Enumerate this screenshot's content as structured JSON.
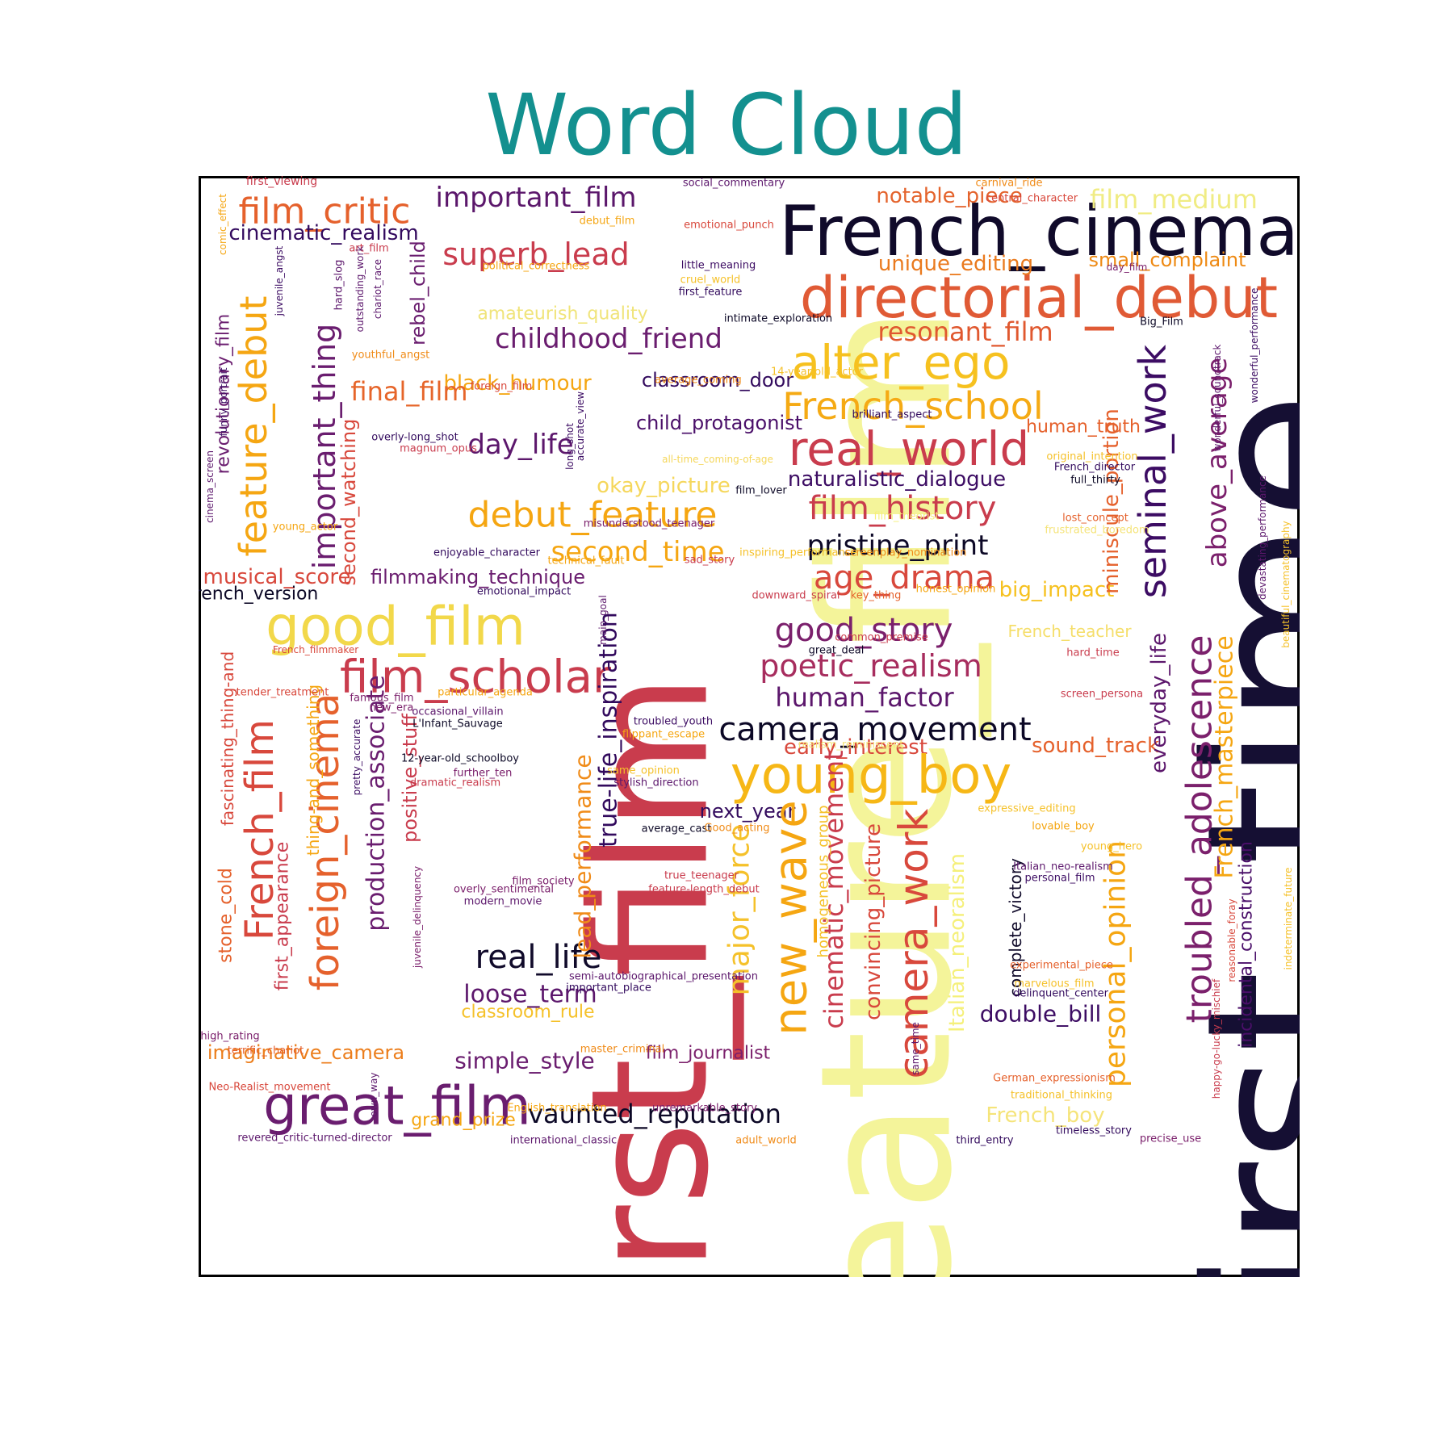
{
  "chart_data": {
    "type": "wordcloud",
    "title": "Word Cloud",
    "colormap": "inferno",
    "background": "#ffffff",
    "palette": {
      "title": "#13908f",
      "frame": "#000000"
    },
    "words": [
      {
        "text": "first_film",
        "c": "#c93c4d"
      },
      {
        "text": "feature_film",
        "c": "#f4f49a"
      },
      {
        "text": "first_time",
        "c": "#150f33"
      },
      {
        "text": "French_cinema",
        "c": "#100a2a"
      },
      {
        "text": "directorial_debut",
        "c": "#e05a35"
      },
      {
        "text": "film_critic",
        "c": "#e5612c"
      },
      {
        "text": "important_film",
        "c": "#5b176b"
      },
      {
        "text": "notable_piece",
        "c": "#e4632c"
      },
      {
        "text": "film_medium",
        "c": "#f0ec84"
      },
      {
        "text": "cinematic_realism",
        "c": "#330a5e"
      },
      {
        "text": "superb_lead",
        "c": "#c93c4d"
      },
      {
        "text": "unique_editing",
        "c": "#ea7a1e"
      },
      {
        "text": "small_complaint",
        "c": "#ee8a14"
      },
      {
        "text": "amateurish_quality",
        "c": "#f0e47a"
      },
      {
        "text": "childhood_friend",
        "c": "#6a1d6f"
      },
      {
        "text": "resonant_film",
        "c": "#e0582f"
      },
      {
        "text": "alter_ego",
        "c": "#f6c11f"
      },
      {
        "text": "black_humour",
        "c": "#f5a612"
      },
      {
        "text": "final_film",
        "c": "#e6652a"
      },
      {
        "text": "classroom_door",
        "c": "#320a5d"
      },
      {
        "text": "French_school",
        "c": "#f5aa14"
      },
      {
        "text": "child_protagonist",
        "c": "#4a0f69"
      },
      {
        "text": "real_world",
        "c": "#c93c4d"
      },
      {
        "text": "day_life",
        "c": "#5c176c"
      },
      {
        "text": "human_truth",
        "c": "#e5612c"
      },
      {
        "text": "naturalistic_dialogue",
        "c": "#3c0c63"
      },
      {
        "text": "okay_picture",
        "c": "#f5d75c"
      },
      {
        "text": "debut_feature",
        "c": "#f5a612"
      },
      {
        "text": "film_history",
        "c": "#c93c4d"
      },
      {
        "text": "second_time",
        "c": "#f5a612"
      },
      {
        "text": "pristine_print",
        "c": "#0c0826"
      },
      {
        "text": "musical_score",
        "c": "#d8483c"
      },
      {
        "text": "filmmaking_technique",
        "c": "#6a1d6f"
      },
      {
        "text": "age_drama",
        "c": "#d8483c"
      },
      {
        "text": "big_impact",
        "c": "#f6c11f"
      },
      {
        "text": "French_version",
        "c": "#0c0826"
      },
      {
        "text": "good_film",
        "c": "#f2d84a"
      },
      {
        "text": "good_story",
        "c": "#7b206c"
      },
      {
        "text": "French_teacher",
        "c": "#f5de6a"
      },
      {
        "text": "film_scholar",
        "c": "#c93c4d"
      },
      {
        "text": "poetic_realism",
        "c": "#a72d5e"
      },
      {
        "text": "human_factor",
        "c": "#5c176c"
      },
      {
        "text": "camera_movement",
        "c": "#0c0826"
      },
      {
        "text": "early_interest",
        "c": "#d8483c"
      },
      {
        "text": "sound_track",
        "c": "#e5612c"
      },
      {
        "text": "young_boy",
        "c": "#f6b716"
      },
      {
        "text": "next_year",
        "c": "#320a5d"
      },
      {
        "text": "real_life",
        "c": "#100a2a"
      },
      {
        "text": "loose_term",
        "c": "#5c176c"
      },
      {
        "text": "classroom_rule",
        "c": "#f5c12a"
      },
      {
        "text": "double_bill",
        "c": "#3c0c63"
      },
      {
        "text": "imaginative_camera",
        "c": "#ec7e1c"
      },
      {
        "text": "simple_style",
        "c": "#6a1d6f"
      },
      {
        "text": "film_journalist",
        "c": "#7b206c"
      },
      {
        "text": "great_film",
        "c": "#6a1d6f"
      },
      {
        "text": "vaunted_reputation",
        "c": "#0c0826"
      },
      {
        "text": "grand_prize",
        "c": "#f5a612"
      },
      {
        "text": "French_boy",
        "c": "#f5e47a"
      },
      {
        "text": "feature_debut",
        "c": "#f5a612"
      },
      {
        "text": "important_thing",
        "c": "#6a1d6f"
      },
      {
        "text": "revolutionary_film",
        "c": "#6a1d6f"
      },
      {
        "text": "rebel_child",
        "c": "#6a1d6f"
      },
      {
        "text": "second_watching",
        "c": "#d8483c"
      },
      {
        "text": "French_film",
        "c": "#d8483c"
      },
      {
        "text": "foreign_cinema",
        "c": "#e5612c"
      },
      {
        "text": "production_associate",
        "c": "#6a1d6f"
      },
      {
        "text": "positive_stuff",
        "c": "#c93c4d"
      },
      {
        "text": "lead_performance",
        "c": "#f08b18"
      },
      {
        "text": "true-life_inspiration",
        "c": "#320a5d"
      },
      {
        "text": "new_wave",
        "c": "#f5a612"
      },
      {
        "text": "major_force",
        "c": "#f5c12a"
      },
      {
        "text": "cinematic_movement",
        "c": "#c93c4d"
      },
      {
        "text": "convincing_picture",
        "c": "#d8483c"
      },
      {
        "text": "camera_work",
        "c": "#d8483c"
      },
      {
        "text": "Italian_neoralism",
        "c": "#f5f07a"
      },
      {
        "text": "complete_victory",
        "c": "#100a2a"
      },
      {
        "text": "personal_opinion",
        "c": "#f5a612"
      },
      {
        "text": "miniscule_portion",
        "c": "#e5612c"
      },
      {
        "text": "seminal_work",
        "c": "#3c0c63"
      },
      {
        "text": "troubled_adolescence",
        "c": "#7b206c"
      },
      {
        "text": "above_average",
        "c": "#7b206c"
      },
      {
        "text": "everyday_life",
        "c": "#5c176c"
      },
      {
        "text": "French_masterpiece",
        "c": "#f5a612"
      },
      {
        "text": "incidental_construction",
        "c": "#4a0f69"
      },
      {
        "text": "stone_cold",
        "c": "#e5612c"
      },
      {
        "text": "fascinating_thing-and",
        "c": "#d8483c"
      },
      {
        "text": "first_appearance",
        "c": "#c93c4d"
      },
      {
        "text": "thing-and_something",
        "c": "#f5a612"
      },
      {
        "text": "homogeneous_group",
        "c": "#f5c12a"
      },
      {
        "text": "first_viewing",
        "c": "#c93c4d"
      },
      {
        "text": "social_commentary",
        "c": "#5c176c"
      },
      {
        "text": "carnival_ride",
        "c": "#f08b18"
      },
      {
        "text": "central_character",
        "c": "#d8483c"
      },
      {
        "text": "debut_film",
        "c": "#f5a612"
      },
      {
        "text": "emotional_punch",
        "c": "#d8483c"
      },
      {
        "text": "art_film",
        "c": "#c93c4d"
      },
      {
        "text": "comic_effect",
        "c": "#f5a612"
      },
      {
        "text": "political_correctness",
        "c": "#f5a612"
      },
      {
        "text": "little_meaning",
        "c": "#3c0c63"
      },
      {
        "text": "cruel_world",
        "c": "#f5c12a"
      },
      {
        "text": "first_feature",
        "c": "#320a5d"
      },
      {
        "text": "day_film",
        "c": "#7b206c"
      },
      {
        "text": "hard_slog",
        "c": "#5c176c"
      },
      {
        "text": "outstanding_work",
        "c": "#5c176c"
      },
      {
        "text": "chariot_race",
        "c": "#5c176c"
      },
      {
        "text": "juvenile_angst",
        "c": "#3c0c63"
      },
      {
        "text": "intimate_exploration",
        "c": "#0c0826"
      },
      {
        "text": "Big_Film",
        "c": "#0c0826"
      },
      {
        "text": "youthful_angst",
        "c": "#f08b18"
      },
      {
        "text": "14-year-old_actor",
        "c": "#f5c12a"
      },
      {
        "text": "wonderful_performance",
        "c": "#3c0c63"
      },
      {
        "text": "average_coming",
        "c": "#f08b18"
      },
      {
        "text": "foreign_film",
        "c": "#d8483c"
      },
      {
        "text": "funny_portrait",
        "c": "#3c0c63"
      },
      {
        "text": "accurate_view",
        "c": "#3c0c63"
      },
      {
        "text": "brilliant_aspect",
        "c": "#320a5d"
      },
      {
        "text": "wonderful_soundtrack",
        "c": "#5c176c"
      },
      {
        "text": "overly-long_shot",
        "c": "#320a5d"
      },
      {
        "text": "magnum_opus",
        "c": "#c93c4d"
      },
      {
        "text": "long_shot",
        "c": "#3c0c63"
      },
      {
        "text": "all-time_coming-of-age",
        "c": "#f5d75c"
      },
      {
        "text": "original_intention",
        "c": "#f5c12a"
      },
      {
        "text": "French_director",
        "c": "#320a5d"
      },
      {
        "text": "full_thirty",
        "c": "#0c0826"
      },
      {
        "text": "cinema_screen",
        "c": "#5c176c"
      },
      {
        "text": "film_lover",
        "c": "#0c0826"
      },
      {
        "text": "lost_concept",
        "c": "#e5612c"
      },
      {
        "text": "film_theorist",
        "c": "#f5f07a"
      },
      {
        "text": "frustrated_boredom",
        "c": "#f5e47a"
      },
      {
        "text": "young_actor",
        "c": "#f5a612"
      },
      {
        "text": "misunderstood_teenager",
        "c": "#7b206c"
      },
      {
        "text": "devastating_performance",
        "c": "#5c176c"
      },
      {
        "text": "enjoyable_character",
        "c": "#320a5d"
      },
      {
        "text": "inspiring_performance",
        "c": "#f5c12a"
      },
      {
        "text": "screenplay_nomination",
        "c": "#f08b18"
      },
      {
        "text": "technical_fault",
        "c": "#f5a612"
      },
      {
        "text": "sad_story",
        "c": "#c93c4d"
      },
      {
        "text": "beautiful_cinematography",
        "c": "#f5c12a"
      },
      {
        "text": "emotional_impact",
        "c": "#320a5d"
      },
      {
        "text": "downward_spiral",
        "c": "#c93c4d"
      },
      {
        "text": "key_thing",
        "c": "#e5612c"
      },
      {
        "text": "honest_opinion",
        "c": "#f5a612"
      },
      {
        "text": "main_goal",
        "c": "#5c176c"
      },
      {
        "text": "common_premise",
        "c": "#c93c4d"
      },
      {
        "text": "great_deal",
        "c": "#0c0826"
      },
      {
        "text": "French_filmmaker",
        "c": "#d8483c"
      },
      {
        "text": "hard_time",
        "c": "#c93c4d"
      },
      {
        "text": "tender_treatment",
        "c": "#d8483c"
      },
      {
        "text": "famous_film",
        "c": "#7b206c"
      },
      {
        "text": "particular_agenda",
        "c": "#f5a612"
      },
      {
        "text": "new_era",
        "c": "#7b206c"
      },
      {
        "text": "screen_persona",
        "c": "#c93c4d"
      },
      {
        "text": "occasional_villain",
        "c": "#5c176c"
      },
      {
        "text": "L'Infant_Sauvage",
        "c": "#0c0826"
      },
      {
        "text": "troubled_youth",
        "c": "#3c0c63"
      },
      {
        "text": "flippant_escape",
        "c": "#f5a612"
      },
      {
        "text": "realism_reminiscent",
        "c": "#f5e47a"
      },
      {
        "text": "12-year-old_schoolboy",
        "c": "#0c0826"
      },
      {
        "text": "pretty_accurate",
        "c": "#3c0c63"
      },
      {
        "text": "further_ten",
        "c": "#7b206c"
      },
      {
        "text": "same_opinion",
        "c": "#f5c12a"
      },
      {
        "text": "dramatic_realism",
        "c": "#c93c4d"
      },
      {
        "text": "stylish_direction",
        "c": "#5c176c"
      },
      {
        "text": "expressive_editing",
        "c": "#f5c12a"
      },
      {
        "text": "average_cast",
        "c": "#0c0826"
      },
      {
        "text": "Good_acting",
        "c": "#f08b18"
      },
      {
        "text": "lovable_boy",
        "c": "#f5a612"
      },
      {
        "text": "young_hero",
        "c": "#f5c12a"
      },
      {
        "text": "true_teenager",
        "c": "#c93c4d"
      },
      {
        "text": "Italian_neo-realism",
        "c": "#5c176c"
      },
      {
        "text": "film_society",
        "c": "#7b206c"
      },
      {
        "text": "feature-length_debut",
        "c": "#c93c4d"
      },
      {
        "text": "personal_film",
        "c": "#3c0c63"
      },
      {
        "text": "overly_sentimental",
        "c": "#7b206c"
      },
      {
        "text": "modern_movie",
        "c": "#5c176c"
      },
      {
        "text": "indeterminate_future",
        "c": "#f5c12a"
      },
      {
        "text": "juvenile_delinquency",
        "c": "#7b206c"
      },
      {
        "text": "reasonable_foray",
        "c": "#d8483c"
      },
      {
        "text": "experimental_piece",
        "c": "#e5612c"
      },
      {
        "text": "semi-autobiographical_presentation",
        "c": "#5c176c"
      },
      {
        "text": "important_place",
        "c": "#320a5d"
      },
      {
        "text": "marvelous_film",
        "c": "#f5c12a"
      },
      {
        "text": "delinquent_center",
        "c": "#320a5d"
      },
      {
        "text": "happy-go-lucky_mischief",
        "c": "#c93c4d"
      },
      {
        "text": "high_rating",
        "c": "#7b206c"
      },
      {
        "text": "terrific_chariot",
        "c": "#e5612c"
      },
      {
        "text": "master_criminal",
        "c": "#f08b18"
      },
      {
        "text": "same_time",
        "c": "#5c176c"
      },
      {
        "text": "German_expressionism",
        "c": "#e5612c"
      },
      {
        "text": "Neo-Realist_movement",
        "c": "#d8483c"
      },
      {
        "text": "own_way",
        "c": "#5c176c"
      },
      {
        "text": "traditional_thinking",
        "c": "#f5c12a"
      },
      {
        "text": "English_translation",
        "c": "#f5a612"
      },
      {
        "text": "unremarkable_story",
        "c": "#7b206c"
      },
      {
        "text": "timeless_story",
        "c": "#320a5d"
      },
      {
        "text": "revered_critic-turned-director",
        "c": "#5c176c"
      },
      {
        "text": "international_classic",
        "c": "#5c176c"
      },
      {
        "text": "adult_world",
        "c": "#f08b18"
      },
      {
        "text": "third_entry",
        "c": "#320a5d"
      },
      {
        "text": "precise_use",
        "c": "#7b206c"
      }
    ]
  }
}
